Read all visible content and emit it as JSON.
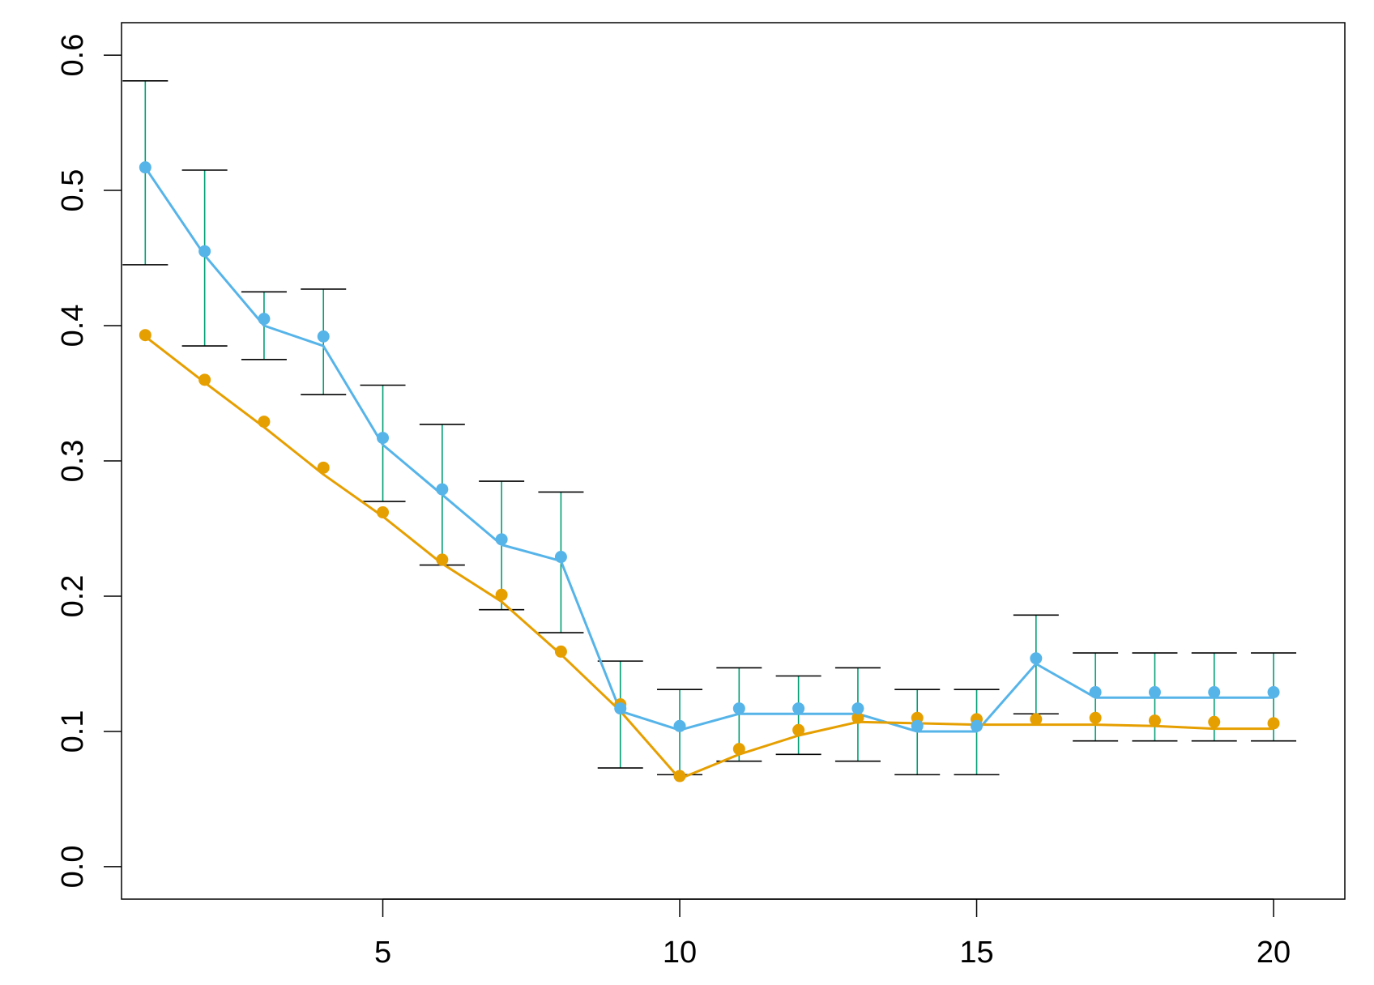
{
  "chart_data": {
    "type": "line",
    "title": "",
    "xlabel": "",
    "ylabel": "",
    "xlim": [
      0.6,
      21.2
    ],
    "ylim": [
      -0.024,
      0.624
    ],
    "xticks": [
      5,
      10,
      15,
      20
    ],
    "xtick_labels": [
      "5",
      "10",
      "15",
      "20"
    ],
    "yticks": [
      0.0,
      0.1,
      0.2,
      0.3,
      0.4,
      0.5,
      0.6
    ],
    "ytick_labels": [
      "0.0",
      "0.1",
      "0.2",
      "0.3",
      "0.4",
      "0.5",
      "0.6"
    ],
    "grid": false,
    "x": [
      1,
      2,
      3,
      4,
      5,
      6,
      7,
      8,
      9,
      10,
      11,
      12,
      13,
      14,
      15,
      16,
      17,
      18,
      19,
      20
    ],
    "series": [
      {
        "color": "#56b4e9",
        "points": [
          0.517,
          0.455,
          0.405,
          0.392,
          0.317,
          0.279,
          0.242,
          0.229,
          0.117,
          0.104,
          0.117,
          0.117,
          0.117,
          0.104,
          0.104,
          0.154,
          0.129,
          0.129,
          0.129,
          0.129
        ],
        "line": [
          0.517,
          0.452,
          0.4,
          0.385,
          0.312,
          0.275,
          0.238,
          0.226,
          0.115,
          0.101,
          0.113,
          0.113,
          0.113,
          0.1,
          0.1,
          0.15,
          0.125,
          0.125,
          0.125,
          0.125
        ]
      },
      {
        "color": "#e69f00",
        "points": [
          0.393,
          0.36,
          0.329,
          0.295,
          0.262,
          0.227,
          0.201,
          0.159,
          0.12,
          0.067,
          0.087,
          0.101,
          0.11,
          0.11,
          0.109,
          0.109,
          0.11,
          0.108,
          0.107,
          0.106
        ],
        "line": [
          0.392,
          0.358,
          0.325,
          0.29,
          0.259,
          0.224,
          0.196,
          0.157,
          0.115,
          0.065,
          0.083,
          0.097,
          0.107,
          0.106,
          0.105,
          0.105,
          0.105,
          0.104,
          0.102,
          0.102
        ]
      }
    ],
    "error_bars": {
      "color": "#009e73",
      "cap_color": "#000000",
      "lower": [
        0.445,
        0.385,
        0.375,
        0.349,
        0.27,
        0.223,
        0.19,
        0.173,
        0.073,
        0.068,
        0.078,
        0.083,
        0.078,
        0.068,
        0.068,
        0.113,
        0.093,
        0.093,
        0.093,
        0.093
      ],
      "upper": [
        0.581,
        0.515,
        0.425,
        0.427,
        0.356,
        0.327,
        0.285,
        0.277,
        0.152,
        0.131,
        0.147,
        0.141,
        0.147,
        0.131,
        0.131,
        0.186,
        0.158,
        0.158,
        0.158,
        0.158
      ]
    }
  }
}
